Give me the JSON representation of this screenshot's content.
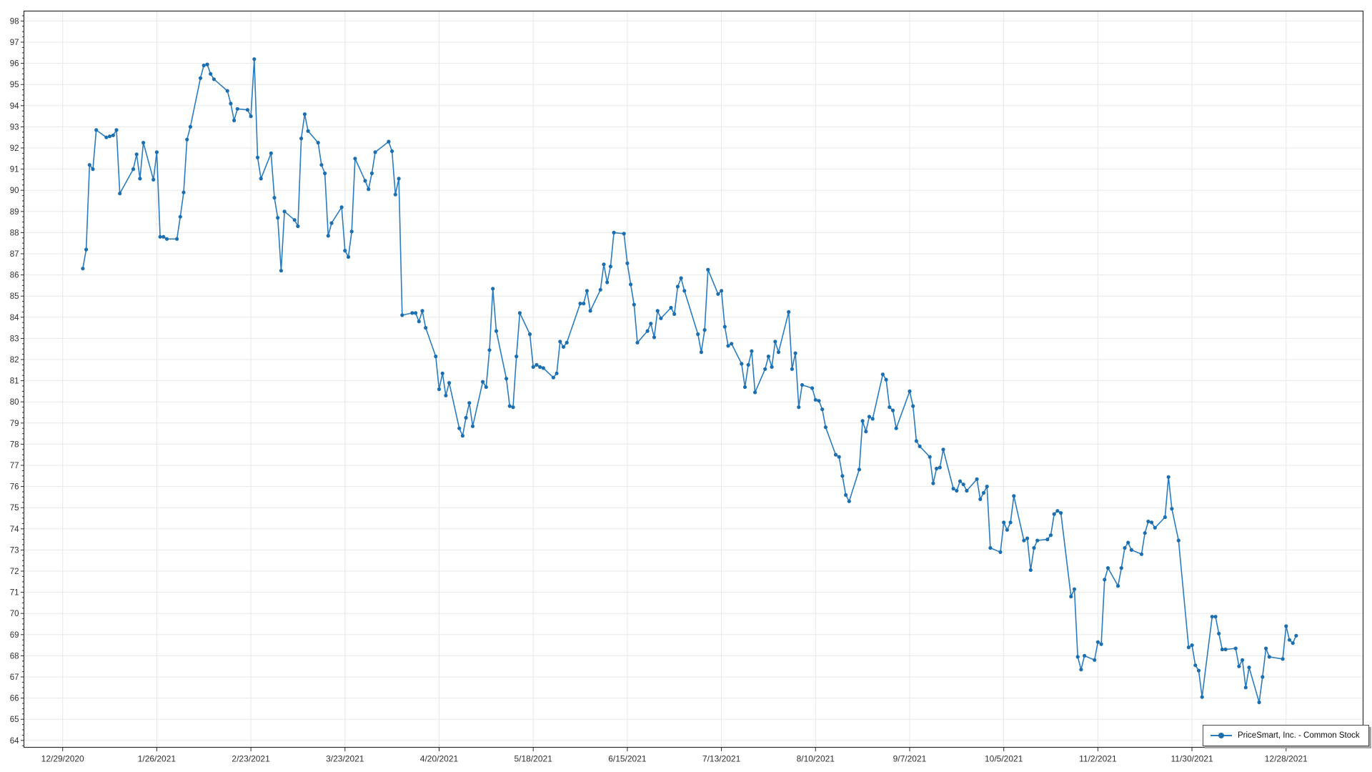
{
  "chart_data": {
    "type": "line",
    "legend": "PriceSmart, Inc. - Common Stock",
    "legend_position": "bottom-right",
    "grid": "on",
    "y_axis": {
      "min": 64,
      "max": 98,
      "major_step": 1,
      "minor_tick_step": 0.25
    },
    "x_axis": {
      "origin": "12/29/2020",
      "tick_interval_days": 28,
      "tick_labels": [
        "12/29/2020",
        "1/26/2021",
        "2/23/2021",
        "3/23/2021",
        "4/20/2021",
        "5/18/2021",
        "6/15/2021",
        "7/13/2021",
        "8/10/2021",
        "9/7/2021",
        "10/5/2021",
        "11/2/2021",
        "11/30/2021",
        "12/28/2021"
      ]
    },
    "series": [
      {
        "name": "PriceSmart, Inc. - Common Stock",
        "year": 2021,
        "dates": [
          "1/4",
          "1/5",
          "1/6",
          "1/7",
          "1/8",
          "1/11",
          "1/12",
          "1/13",
          "1/14",
          "1/15",
          "1/19",
          "1/20",
          "1/21",
          "1/22",
          "1/25",
          "1/26",
          "1/27",
          "1/28",
          "1/29",
          "2/1",
          "2/2",
          "2/3",
          "2/4",
          "2/5",
          "2/8",
          "2/9",
          "2/10",
          "2/11",
          "2/12",
          "2/16",
          "2/17",
          "2/18",
          "2/19",
          "2/22",
          "2/23",
          "2/24",
          "2/25",
          "2/26",
          "3/1",
          "3/2",
          "3/3",
          "3/4",
          "3/5",
          "3/8",
          "3/9",
          "3/10",
          "3/11",
          "3/12",
          "3/15",
          "3/16",
          "3/17",
          "3/18",
          "3/19",
          "3/22",
          "3/23",
          "3/24",
          "3/25",
          "3/26",
          "3/29",
          "3/30",
          "3/31",
          "4/1",
          "4/5",
          "4/6",
          "4/7",
          "4/8",
          "4/9",
          "4/12",
          "4/13",
          "4/14",
          "4/15",
          "4/16",
          "4/19",
          "4/20",
          "4/21",
          "4/22",
          "4/23",
          "4/26",
          "4/27",
          "4/28",
          "4/29",
          "4/30",
          "5/3",
          "5/4",
          "5/5",
          "5/6",
          "5/7",
          "5/10",
          "5/11",
          "5/12",
          "5/13",
          "5/14",
          "5/17",
          "5/18",
          "5/19",
          "5/20",
          "5/21",
          "5/24",
          "5/25",
          "5/26",
          "5/27",
          "5/28",
          "6/1",
          "6/2",
          "6/3",
          "6/4",
          "6/7",
          "6/8",
          "6/9",
          "6/10",
          "6/11",
          "6/14",
          "6/15",
          "6/16",
          "6/17",
          "6/18",
          "6/21",
          "6/22",
          "6/23",
          "6/24",
          "6/25",
          "6/28",
          "6/29",
          "6/30",
          "7/1",
          "7/2",
          "7/6",
          "7/7",
          "7/8",
          "7/9",
          "7/12",
          "7/13",
          "7/14",
          "7/15",
          "7/16",
          "7/19",
          "7/20",
          "7/21",
          "7/22",
          "7/23",
          "7/26",
          "7/27",
          "7/28",
          "7/29",
          "7/30",
          "8/2",
          "8/3",
          "8/4",
          "8/5",
          "8/6",
          "8/9",
          "8/10",
          "8/11",
          "8/12",
          "8/13",
          "8/16",
          "8/17",
          "8/18",
          "8/19",
          "8/20",
          "8/23",
          "8/24",
          "8/25",
          "8/26",
          "8/27",
          "8/30",
          "8/31",
          "9/1",
          "9/2",
          "9/3",
          "9/7",
          "9/8",
          "9/9",
          "9/10",
          "9/13",
          "9/14",
          "9/15",
          "9/16",
          "9/17",
          "9/20",
          "9/21",
          "9/22",
          "9/23",
          "9/24",
          "9/27",
          "9/28",
          "9/29",
          "9/30",
          "10/1",
          "10/4",
          "10/5",
          "10/6",
          "10/7",
          "10/8",
          "10/11",
          "10/12",
          "10/13",
          "10/14",
          "10/15",
          "10/18",
          "10/19",
          "10/20",
          "10/21",
          "10/22",
          "10/25",
          "10/26",
          "10/27",
          "10/28",
          "10/29",
          "11/1",
          "11/2",
          "11/3",
          "11/4",
          "11/5",
          "11/8",
          "11/9",
          "11/10",
          "11/11",
          "11/12",
          "11/15",
          "11/16",
          "11/17",
          "11/18",
          "11/19",
          "11/22",
          "11/23",
          "11/24",
          "11/26",
          "11/29",
          "11/30",
          "12/1",
          "12/2",
          "12/3",
          "12/6",
          "12/7",
          "12/8",
          "12/9",
          "12/10",
          "12/13",
          "12/14",
          "12/15",
          "12/16",
          "12/17",
          "12/20",
          "12/21",
          "12/22",
          "12/23",
          "12/27",
          "12/28",
          "12/29",
          "12/30",
          "12/31"
        ],
        "values": [
          86.3,
          87.2,
          91.2,
          91.0,
          92.85,
          92.5,
          92.55,
          92.6,
          92.85,
          89.85,
          91.0,
          91.7,
          90.55,
          92.25,
          90.5,
          91.8,
          87.8,
          87.8,
          87.7,
          87.7,
          88.75,
          89.9,
          92.4,
          93.0,
          95.3,
          95.9,
          95.95,
          95.5,
          95.25,
          94.7,
          94.1,
          93.3,
          93.85,
          93.8,
          93.5,
          96.2,
          91.55,
          90.55,
          91.75,
          89.65,
          88.7,
          86.2,
          89.0,
          88.6,
          88.3,
          92.45,
          93.6,
          92.8,
          92.25,
          91.2,
          90.8,
          87.85,
          88.45,
          89.2,
          87.15,
          86.85,
          88.05,
          91.5,
          90.45,
          90.05,
          90.8,
          91.8,
          92.3,
          91.85,
          89.8,
          90.55,
          84.1,
          84.2,
          84.2,
          83.8,
          84.3,
          83.5,
          82.15,
          80.6,
          81.35,
          80.3,
          80.9,
          78.75,
          78.4,
          79.25,
          79.95,
          78.85,
          80.95,
          80.7,
          82.45,
          85.35,
          83.35,
          81.1,
          79.8,
          79.75,
          82.15,
          84.2,
          83.2,
          81.65,
          81.75,
          81.65,
          81.6,
          81.15,
          81.35,
          82.85,
          82.6,
          82.8,
          84.65,
          84.65,
          85.25,
          84.3,
          85.3,
          86.5,
          85.65,
          86.4,
          88.0,
          87.95,
          86.55,
          85.55,
          84.6,
          82.8,
          83.35,
          83.7,
          83.05,
          84.3,
          83.95,
          84.45,
          84.15,
          85.45,
          85.85,
          85.25,
          83.2,
          82.35,
          83.4,
          86.25,
          85.1,
          85.25,
          83.55,
          82.65,
          82.75,
          81.8,
          80.7,
          81.75,
          82.4,
          80.45,
          81.55,
          82.15,
          81.65,
          82.85,
          82.35,
          84.25,
          81.55,
          82.3,
          79.75,
          80.8,
          80.65,
          80.1,
          80.05,
          79.65,
          78.8,
          77.5,
          77.4,
          76.5,
          75.6,
          75.3,
          76.8,
          79.1,
          78.6,
          79.3,
          79.2,
          81.3,
          81.05,
          79.75,
          79.6,
          78.75,
          80.5,
          79.8,
          78.15,
          77.9,
          77.4,
          76.15,
          76.85,
          76.9,
          77.75,
          75.9,
          75.8,
          76.25,
          76.1,
          75.8,
          76.35,
          75.4,
          75.7,
          76.0,
          73.1,
          72.9,
          74.3,
          73.95,
          74.3,
          75.55,
          73.45,
          73.55,
          72.05,
          73.1,
          73.45,
          73.5,
          73.7,
          74.7,
          74.85,
          74.75,
          70.8,
          71.15,
          67.95,
          67.35,
          68.0,
          67.8,
          68.65,
          68.55,
          71.6,
          72.15,
          71.3,
          72.15,
          73.1,
          73.35,
          73.0,
          72.8,
          73.8,
          74.35,
          74.3,
          74.05,
          74.55,
          76.45,
          74.95,
          73.45,
          68.4,
          68.5,
          67.55,
          67.3,
          66.05,
          69.85,
          69.85,
          69.05,
          68.3,
          68.3,
          68.35,
          67.5,
          67.8,
          66.5,
          67.45,
          65.8,
          67.0,
          68.35,
          67.95,
          67.85,
          69.4,
          68.75,
          68.6,
          68.95
        ]
      }
    ],
    "colors": {
      "line": "#2b7cbe",
      "marker": "#1b6fb0",
      "grid": "#e8e8e8",
      "axis": "#2b2b2b",
      "text": "#303030",
      "background": "#ffffff",
      "legend_border": "#4a4a4a",
      "legend_shadow": "#a6a6a6"
    }
  }
}
